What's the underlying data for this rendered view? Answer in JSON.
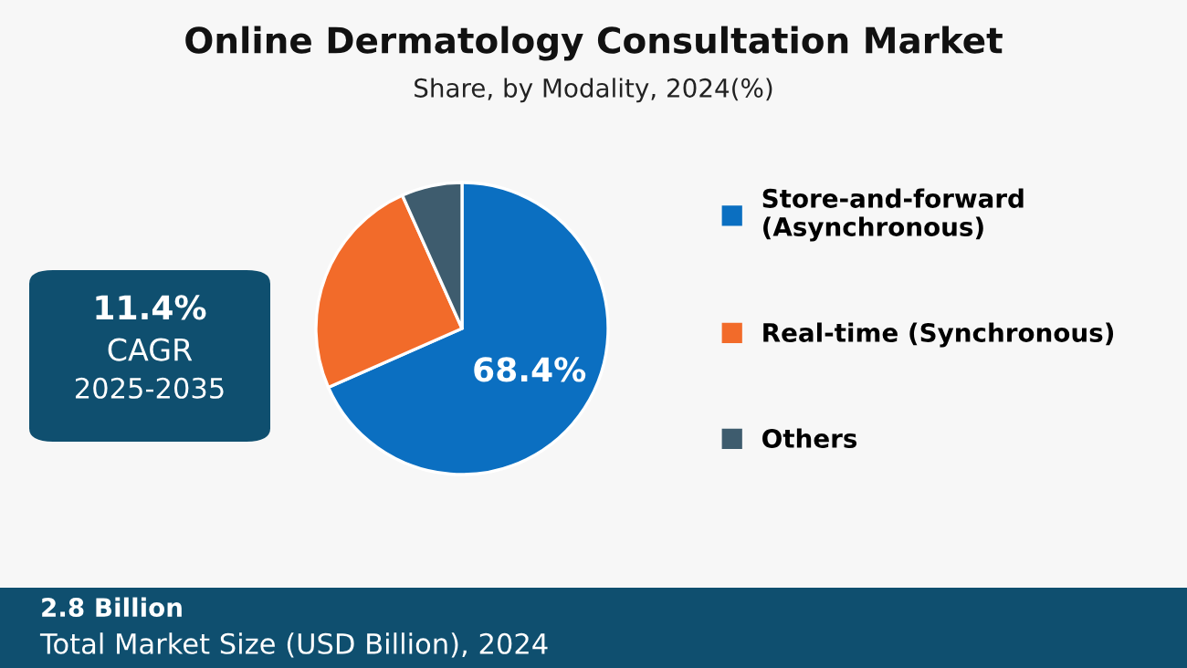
{
  "chart_data": {
    "type": "pie",
    "title": "Online Dermatology Consultation Market",
    "subtitle": "Share, by Modality, 2024(%)",
    "categories": [
      "Store-and-forward (Asynchronous)",
      "Real-time (Synchronous)",
      "Others"
    ],
    "values": [
      68.4,
      24.9,
      6.7
    ],
    "colors": [
      "#0b6fc1",
      "#f26b2a",
      "#3e5c6e"
    ],
    "value_labels": [
      "68.4%",
      null,
      null
    ],
    "legend": "right",
    "annotations": [
      "11.4%",
      "CAGR",
      "2025-2035",
      "2.8 Billion",
      "Total Market Size (USD Billion), 2024"
    ]
  }
}
